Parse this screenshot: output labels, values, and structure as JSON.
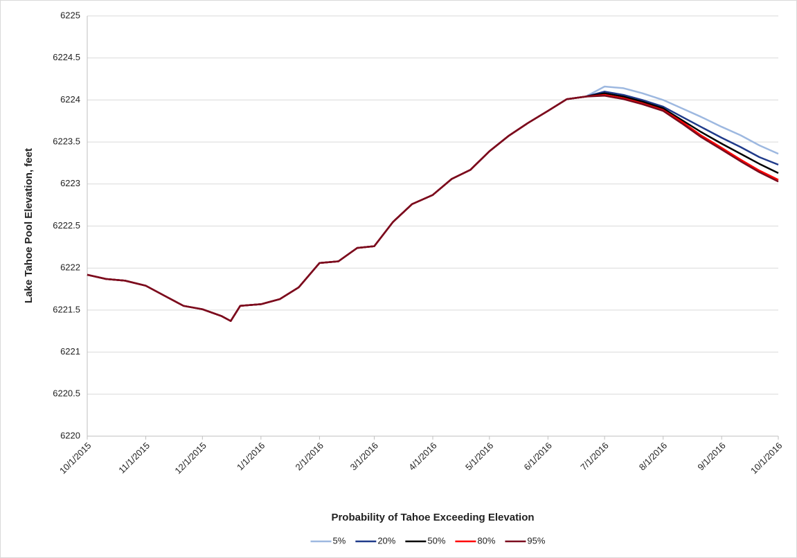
{
  "chart_data": {
    "type": "line",
    "x_title": "Probability of Tahoe Exceeding Elevation",
    "y_title": "Lake Tahoe Pool Elevation, feet",
    "x": [
      "10/1/2015",
      "10/11/2015",
      "10/21/2015",
      "11/1/2015",
      "11/11/2015",
      "11/21/2015",
      "12/1/2015",
      "12/11/2015",
      "12/16/2015",
      "12/21/2015",
      "1/1/2016",
      "1/11/2016",
      "1/21/2016",
      "2/1/2016",
      "2/11/2016",
      "2/21/2016",
      "3/1/2016",
      "3/11/2016",
      "3/21/2016",
      "4/1/2016",
      "4/11/2016",
      "4/21/2016",
      "5/1/2016",
      "5/11/2016",
      "5/21/2016",
      "6/1/2016",
      "6/11/2016",
      "6/21/2016",
      "7/1/2016",
      "7/11/2016",
      "7/21/2016",
      "8/1/2016",
      "8/11/2016",
      "8/21/2016",
      "9/1/2016",
      "9/11/2016",
      "9/21/2016",
      "10/1/2016"
    ],
    "series": [
      {
        "name": "5%",
        "color": "#9db8e0",
        "values": [
          6221.92,
          6221.87,
          6221.85,
          6221.79,
          6221.67,
          6221.55,
          6221.51,
          6221.43,
          6221.37,
          6221.55,
          6221.57,
          6221.63,
          6221.77,
          6222.06,
          6222.08,
          6222.24,
          6222.26,
          6222.55,
          6222.76,
          6222.87,
          6223.06,
          6223.17,
          6223.39,
          6223.57,
          6223.72,
          6223.87,
          6224.01,
          6224.04,
          6224.16,
          6224.14,
          6224.08,
          6224.0,
          6223.9,
          6223.8,
          6223.68,
          6223.58,
          6223.46,
          6223.36
        ]
      },
      {
        "name": "20%",
        "color": "#1f3a8a",
        "values": [
          6221.92,
          6221.87,
          6221.85,
          6221.79,
          6221.67,
          6221.55,
          6221.51,
          6221.43,
          6221.37,
          6221.55,
          6221.57,
          6221.63,
          6221.77,
          6222.06,
          6222.08,
          6222.24,
          6222.26,
          6222.55,
          6222.76,
          6222.87,
          6223.06,
          6223.17,
          6223.39,
          6223.57,
          6223.72,
          6223.87,
          6224.01,
          6224.04,
          6224.1,
          6224.06,
          6224.0,
          6223.92,
          6223.8,
          6223.68,
          6223.55,
          6223.44,
          6223.32,
          6223.23
        ]
      },
      {
        "name": "50%",
        "color": "#000000",
        "values": [
          6221.92,
          6221.87,
          6221.85,
          6221.79,
          6221.67,
          6221.55,
          6221.51,
          6221.43,
          6221.37,
          6221.55,
          6221.57,
          6221.63,
          6221.77,
          6222.06,
          6222.08,
          6222.24,
          6222.26,
          6222.55,
          6222.76,
          6222.87,
          6223.06,
          6223.17,
          6223.39,
          6223.57,
          6223.72,
          6223.87,
          6224.01,
          6224.04,
          6224.08,
          6224.04,
          6223.98,
          6223.9,
          6223.76,
          6223.62,
          6223.48,
          6223.36,
          6223.24,
          6223.13
        ]
      },
      {
        "name": "80%",
        "color": "#ff0000",
        "values": [
          6221.92,
          6221.87,
          6221.85,
          6221.79,
          6221.67,
          6221.55,
          6221.51,
          6221.43,
          6221.37,
          6221.55,
          6221.57,
          6221.63,
          6221.77,
          6222.06,
          6222.08,
          6222.24,
          6222.26,
          6222.55,
          6222.76,
          6222.87,
          6223.06,
          6223.17,
          6223.39,
          6223.57,
          6223.72,
          6223.87,
          6224.01,
          6224.04,
          6224.06,
          6224.02,
          6223.96,
          6223.88,
          6223.74,
          6223.58,
          6223.43,
          6223.29,
          6223.16,
          6223.05
        ]
      },
      {
        "name": "95%",
        "color": "#7b0c1e",
        "values": [
          6221.92,
          6221.87,
          6221.85,
          6221.79,
          6221.67,
          6221.55,
          6221.51,
          6221.43,
          6221.37,
          6221.55,
          6221.57,
          6221.63,
          6221.77,
          6222.06,
          6222.08,
          6222.24,
          6222.26,
          6222.55,
          6222.76,
          6222.87,
          6223.06,
          6223.17,
          6223.39,
          6223.57,
          6223.72,
          6223.87,
          6224.01,
          6224.04,
          6224.05,
          6224.01,
          6223.95,
          6223.87,
          6223.72,
          6223.56,
          6223.41,
          6223.27,
          6223.14,
          6223.03
        ]
      }
    ],
    "xlim": [
      "10/1/2015",
      "10/1/2016"
    ],
    "xticks": [
      "10/1/2015",
      "11/1/2015",
      "12/1/2015",
      "1/1/2016",
      "2/1/2016",
      "3/1/2016",
      "4/1/2016",
      "5/1/2016",
      "6/1/2016",
      "7/1/2016",
      "8/1/2016",
      "9/1/2016",
      "10/1/2016"
    ],
    "ylim": [
      6220,
      6225
    ],
    "yticks": [
      6220,
      6220.5,
      6221,
      6221.5,
      6222,
      6222.5,
      6223,
      6223.5,
      6224,
      6224.5,
      6225
    ],
    "grid": true,
    "legend": "bottom"
  }
}
